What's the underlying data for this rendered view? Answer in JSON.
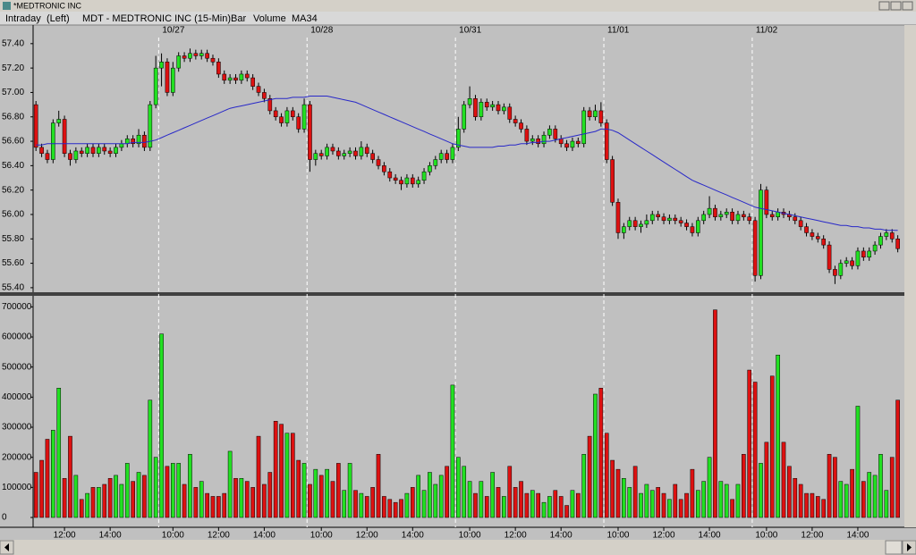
{
  "window": {
    "title": "*MEDTRONIC INC"
  },
  "chart_data": {
    "type": "candlestick",
    "mode": "Intraday",
    "axis_side": "(Left)",
    "title": "MDT - MEDTRONIC INC (15-Min)",
    "style": "Bar",
    "up_color": "#22e022",
    "down_color": "#dd1111",
    "flat_color": "#0000dd",
    "open": [
      56.9,
      56.55,
      56.5,
      56.45,
      56.75,
      56.78,
      56.5,
      56.45,
      56.52,
      56.5,
      56.55,
      56.5,
      56.55,
      56.52,
      56.5,
      56.55,
      56.58,
      56.62,
      56.58,
      56.65,
      56.55,
      56.9,
      57.2,
      57.25,
      57.0,
      57.2,
      57.3,
      57.28,
      57.32,
      57.3,
      57.32,
      57.28,
      57.25,
      57.15,
      57.1,
      57.12,
      57.1,
      57.15,
      57.12,
      57.05,
      57.0,
      56.95,
      56.85,
      56.8,
      56.75,
      56.85,
      56.8,
      56.7,
      56.9,
      56.45,
      56.5,
      56.48,
      56.55,
      56.52,
      56.48,
      56.5,
      56.52,
      56.48,
      56.55,
      56.5,
      56.45,
      56.4,
      56.35,
      56.3,
      56.28,
      56.25,
      56.3,
      56.25,
      56.28,
      56.35,
      56.4,
      56.45,
      56.5,
      56.45,
      56.55,
      56.7,
      56.9,
      56.95,
      56.8,
      56.92,
      56.88,
      56.9,
      56.85,
      56.88,
      56.78,
      56.75,
      56.7,
      56.6,
      56.62,
      56.58,
      56.65,
      56.7,
      56.62,
      56.58,
      56.55,
      56.6,
      56.58,
      56.85,
      56.8,
      56.85,
      56.75,
      56.45,
      56.1,
      55.85,
      55.9,
      55.95,
      55.9,
      55.92,
      55.95,
      56.0,
      55.98,
      55.95,
      55.97,
      55.95,
      55.93,
      55.9,
      55.85,
      55.95,
      56.0,
      56.05,
      55.98,
      56.0,
      56.02,
      55.95,
      56.0,
      55.98,
      55.95,
      55.5,
      56.2,
      56.0,
      55.98,
      56.02,
      56.0,
      55.98,
      55.95,
      55.9,
      55.85,
      55.82,
      55.8,
      55.75,
      55.55,
      55.5,
      55.6,
      55.62,
      55.58,
      55.7,
      55.65,
      55.7,
      55.75,
      55.82,
      55.85,
      55.8
    ],
    "high": [
      56.93,
      56.58,
      56.53,
      56.78,
      56.85,
      56.81,
      56.53,
      56.55,
      56.55,
      56.58,
      56.58,
      56.58,
      56.58,
      56.55,
      56.58,
      56.61,
      56.65,
      56.65,
      56.7,
      56.68,
      56.93,
      57.3,
      57.32,
      57.28,
      57.25,
      57.33,
      57.33,
      57.36,
      57.35,
      57.35,
      57.35,
      57.31,
      57.28,
      57.18,
      57.15,
      57.15,
      57.18,
      57.18,
      57.15,
      57.08,
      57.03,
      56.98,
      56.88,
      56.83,
      56.88,
      56.88,
      56.83,
      56.95,
      56.93,
      56.53,
      56.53,
      56.58,
      56.58,
      56.55,
      56.53,
      56.55,
      56.55,
      56.6,
      56.58,
      56.53,
      56.48,
      56.43,
      56.38,
      56.33,
      56.31,
      56.33,
      56.33,
      56.31,
      56.38,
      56.43,
      56.48,
      56.53,
      56.53,
      56.58,
      56.8,
      56.93,
      57.05,
      56.98,
      56.95,
      56.95,
      56.93,
      56.93,
      56.91,
      56.91,
      56.81,
      56.78,
      56.73,
      56.65,
      56.65,
      56.68,
      56.73,
      56.73,
      56.65,
      56.61,
      56.63,
      56.63,
      56.88,
      56.88,
      56.9,
      56.92,
      56.78,
      56.48,
      56.13,
      55.93,
      55.98,
      55.98,
      55.95,
      56.0,
      56.03,
      56.03,
      56.01,
      56.0,
      56.0,
      55.98,
      55.96,
      55.93,
      55.98,
      56.03,
      56.15,
      56.08,
      56.03,
      56.05,
      56.05,
      56.03,
      56.03,
      56.01,
      55.98,
      56.25,
      56.23,
      56.03,
      56.05,
      56.05,
      56.03,
      56.01,
      55.98,
      55.93,
      55.88,
      55.85,
      55.83,
      55.78,
      55.58,
      55.63,
      55.65,
      55.65,
      55.73,
      55.73,
      55.73,
      55.78,
      55.85,
      55.88,
      55.88,
      55.83
    ],
    "low": [
      56.52,
      56.47,
      56.42,
      56.42,
      56.72,
      56.47,
      56.4,
      56.42,
      56.47,
      56.47,
      56.47,
      56.47,
      56.49,
      56.47,
      56.47,
      56.52,
      56.55,
      56.55,
      56.55,
      56.52,
      56.52,
      56.87,
      57.05,
      56.97,
      56.97,
      57.17,
      57.25,
      57.25,
      57.27,
      57.27,
      57.25,
      57.22,
      57.12,
      57.07,
      57.07,
      57.07,
      57.07,
      57.09,
      57.02,
      56.97,
      56.92,
      56.82,
      56.77,
      56.72,
      56.72,
      56.77,
      56.67,
      56.67,
      56.35,
      56.4,
      56.45,
      56.45,
      56.49,
      56.45,
      56.45,
      56.47,
      56.45,
      56.45,
      56.47,
      56.42,
      56.37,
      56.32,
      56.27,
      56.25,
      56.2,
      56.22,
      56.22,
      56.22,
      56.25,
      56.32,
      56.37,
      56.42,
      56.42,
      56.42,
      56.52,
      56.67,
      56.87,
      56.77,
      56.77,
      56.85,
      56.85,
      56.82,
      56.82,
      56.75,
      56.72,
      56.67,
      56.57,
      56.57,
      56.55,
      56.55,
      56.62,
      56.59,
      56.55,
      56.52,
      56.52,
      56.55,
      56.55,
      56.77,
      56.77,
      56.72,
      56.42,
      56.07,
      55.8,
      55.8,
      55.87,
      55.87,
      55.85,
      55.89,
      55.92,
      55.95,
      55.92,
      55.92,
      55.92,
      55.9,
      55.87,
      55.82,
      55.82,
      55.92,
      55.97,
      55.95,
      55.95,
      55.97,
      55.92,
      55.92,
      55.95,
      55.92,
      55.45,
      55.47,
      55.97,
      55.95,
      55.95,
      55.97,
      55.95,
      55.92,
      55.87,
      55.82,
      55.79,
      55.77,
      55.72,
      55.52,
      55.43,
      55.47,
      55.57,
      55.55,
      55.55,
      55.62,
      55.62,
      55.67,
      55.72,
      55.79,
      55.77,
      55.69
    ],
    "close": [
      56.55,
      56.5,
      56.45,
      56.75,
      56.78,
      56.5,
      56.45,
      56.52,
      56.5,
      56.55,
      56.5,
      56.55,
      56.52,
      56.5,
      56.55,
      56.58,
      56.62,
      56.58,
      56.65,
      56.55,
      56.9,
      57.2,
      57.25,
      57.0,
      57.2,
      57.3,
      57.28,
      57.32,
      57.3,
      57.32,
      57.28,
      57.25,
      57.15,
      57.1,
      57.12,
      57.1,
      57.15,
      57.12,
      57.05,
      57.0,
      56.95,
      56.85,
      56.8,
      56.75,
      56.85,
      56.8,
      56.7,
      56.9,
      56.45,
      56.5,
      56.48,
      56.55,
      56.52,
      56.48,
      56.5,
      56.52,
      56.48,
      56.55,
      56.5,
      56.45,
      56.4,
      56.35,
      56.3,
      56.28,
      56.25,
      56.3,
      56.25,
      56.28,
      56.35,
      56.4,
      56.45,
      56.5,
      56.45,
      56.55,
      56.7,
      56.9,
      56.95,
      56.8,
      56.92,
      56.88,
      56.9,
      56.85,
      56.88,
      56.78,
      56.75,
      56.7,
      56.6,
      56.62,
      56.58,
      56.65,
      56.7,
      56.62,
      56.58,
      56.55,
      56.6,
      56.58,
      56.85,
      56.8,
      56.85,
      56.75,
      56.45,
      56.1,
      55.85,
      55.9,
      55.95,
      55.9,
      55.92,
      55.95,
      56.0,
      55.98,
      55.95,
      55.97,
      55.95,
      55.93,
      55.9,
      55.85,
      55.95,
      56.0,
      56.05,
      55.98,
      56.0,
      56.02,
      55.95,
      56.0,
      55.98,
      55.95,
      55.5,
      56.2,
      56.0,
      55.98,
      56.02,
      56.0,
      55.98,
      55.95,
      55.9,
      55.85,
      55.82,
      55.8,
      55.75,
      55.55,
      55.5,
      55.6,
      55.62,
      55.58,
      55.7,
      55.65,
      55.7,
      55.75,
      55.82,
      55.85,
      55.8,
      55.72
    ],
    "ma": {
      "name": "MA34",
      "color": "#2828c8",
      "values": [
        56.57,
        56.57,
        56.58,
        56.58,
        56.58,
        56.58,
        56.58,
        56.58,
        56.58,
        56.58,
        56.58,
        56.58,
        56.58,
        56.58,
        56.58,
        56.58,
        56.58,
        56.59,
        56.59,
        56.59,
        56.6,
        56.61,
        56.63,
        56.65,
        56.67,
        56.69,
        56.71,
        56.73,
        56.75,
        56.77,
        56.79,
        56.81,
        56.83,
        56.85,
        56.87,
        56.88,
        56.89,
        56.9,
        56.91,
        56.92,
        56.93,
        56.94,
        56.95,
        56.95,
        56.95,
        56.96,
        56.96,
        56.96,
        56.97,
        56.97,
        56.97,
        56.97,
        56.96,
        56.95,
        56.94,
        56.93,
        56.92,
        56.9,
        56.88,
        56.86,
        56.84,
        56.82,
        56.8,
        56.78,
        56.76,
        56.74,
        56.72,
        56.7,
        56.68,
        56.66,
        56.64,
        56.62,
        56.6,
        56.58,
        56.57,
        56.56,
        56.55,
        56.55,
        56.55,
        56.55,
        56.55,
        56.56,
        56.56,
        56.57,
        56.57,
        56.58,
        56.58,
        56.59,
        56.59,
        56.6,
        56.6,
        56.61,
        56.62,
        56.63,
        56.64,
        56.65,
        56.66,
        56.67,
        56.68,
        56.7,
        56.7,
        56.69,
        56.67,
        56.64,
        56.61,
        56.58,
        56.55,
        56.52,
        56.49,
        56.46,
        56.43,
        56.4,
        56.37,
        56.34,
        56.31,
        56.28,
        56.26,
        56.24,
        56.22,
        56.2,
        56.18,
        56.16,
        56.14,
        56.12,
        56.1,
        56.08,
        56.06,
        56.05,
        56.04,
        56.03,
        56.02,
        56.01,
        56.0,
        55.99,
        55.98,
        55.97,
        55.96,
        55.95,
        55.94,
        55.93,
        55.92,
        55.91,
        55.91,
        55.9,
        55.9,
        55.89,
        55.89,
        55.88,
        55.88,
        55.87,
        55.87,
        55.87
      ]
    },
    "volume": {
      "name": "Volume",
      "color": "#2020c0",
      "values": [
        150000,
        190000,
        260000,
        290000,
        430000,
        130000,
        270000,
        140000,
        60000,
        80000,
        100000,
        100000,
        110000,
        130000,
        140000,
        110000,
        180000,
        120000,
        150000,
        140000,
        390000,
        200000,
        610000,
        170000,
        180000,
        180000,
        110000,
        210000,
        100000,
        120000,
        80000,
        70000,
        70000,
        80000,
        220000,
        130000,
        130000,
        120000,
        100000,
        270000,
        110000,
        150000,
        320000,
        310000,
        280000,
        280000,
        190000,
        180000,
        110000,
        160000,
        140000,
        160000,
        120000,
        180000,
        90000,
        180000,
        90000,
        80000,
        70000,
        100000,
        210000,
        70000,
        60000,
        50000,
        60000,
        80000,
        100000,
        140000,
        90000,
        150000,
        110000,
        140000,
        170000,
        440000,
        200000,
        170000,
        120000,
        80000,
        120000,
        70000,
        150000,
        100000,
        70000,
        170000,
        100000,
        120000,
        80000,
        90000,
        80000,
        50000,
        70000,
        90000,
        70000,
        40000,
        90000,
        80000,
        210000,
        270000,
        410000,
        430000,
        280000,
        190000,
        160000,
        130000,
        100000,
        170000,
        80000,
        110000,
        90000,
        100000,
        80000,
        60000,
        110000,
        60000,
        80000,
        160000,
        90000,
        120000,
        200000,
        690000,
        120000,
        110000,
        60000,
        110000,
        210000,
        490000,
        450000,
        180000,
        250000,
        470000,
        540000,
        250000,
        170000,
        130000,
        110000,
        80000,
        80000,
        70000,
        60000,
        210000,
        200000,
        120000,
        110000,
        160000,
        370000,
        120000,
        150000,
        140000,
        210000,
        90000,
        200000,
        390000
      ]
    },
    "ylim": [
      55.37,
      57.45
    ],
    "yticks": [
      {
        "value": 55.4,
        "label": "55.40"
      },
      {
        "value": 55.6,
        "label": "55.60"
      },
      {
        "value": 55.8,
        "label": "55.80"
      },
      {
        "value": 56.0,
        "label": "56.00"
      },
      {
        "value": 56.2,
        "label": "56.20"
      },
      {
        "value": 56.4,
        "label": "56.40"
      },
      {
        "value": 56.6,
        "label": "56.60"
      },
      {
        "value": 56.8,
        "label": "56.80"
      },
      {
        "value": 57.0,
        "label": "57.00"
      },
      {
        "value": 57.2,
        "label": "57.20"
      },
      {
        "value": 57.4,
        "label": "57.40"
      }
    ],
    "y2lim": [
      0,
      710000
    ],
    "y2ticks": [
      0,
      100000,
      200000,
      300000,
      400000,
      500000,
      600000,
      700000
    ],
    "xlim": [
      -0.5,
      152
    ],
    "xticks": [
      {
        "value": 5,
        "label": "12:00"
      },
      {
        "value": 13,
        "label": "14:00"
      },
      {
        "value": 24,
        "label": "10:00"
      },
      {
        "value": 32,
        "label": "12:00"
      },
      {
        "value": 40,
        "label": "14:00"
      },
      {
        "value": 50,
        "label": "10:00"
      },
      {
        "value": 58,
        "label": "12:00"
      },
      {
        "value": 66,
        "label": "14:00"
      },
      {
        "value": 76,
        "label": "10:00"
      },
      {
        "value": 84,
        "label": "12:00"
      },
      {
        "value": 92,
        "label": "14:00"
      },
      {
        "value": 102,
        "label": "10:00"
      },
      {
        "value": 110,
        "label": "12:00"
      },
      {
        "value": 118,
        "label": "14:00"
      },
      {
        "value": 128,
        "label": "10:00"
      },
      {
        "value": 136,
        "label": "12:00"
      },
      {
        "value": 144,
        "label": "14:00"
      }
    ],
    "day_marks": [
      {
        "value": 21.5,
        "label": "10/27"
      },
      {
        "value": 47.5,
        "label": "10/28"
      },
      {
        "value": 73.5,
        "label": "10/31"
      },
      {
        "value": 99.5,
        "label": "11/01"
      },
      {
        "value": 125.5,
        "label": "11/02"
      }
    ]
  }
}
